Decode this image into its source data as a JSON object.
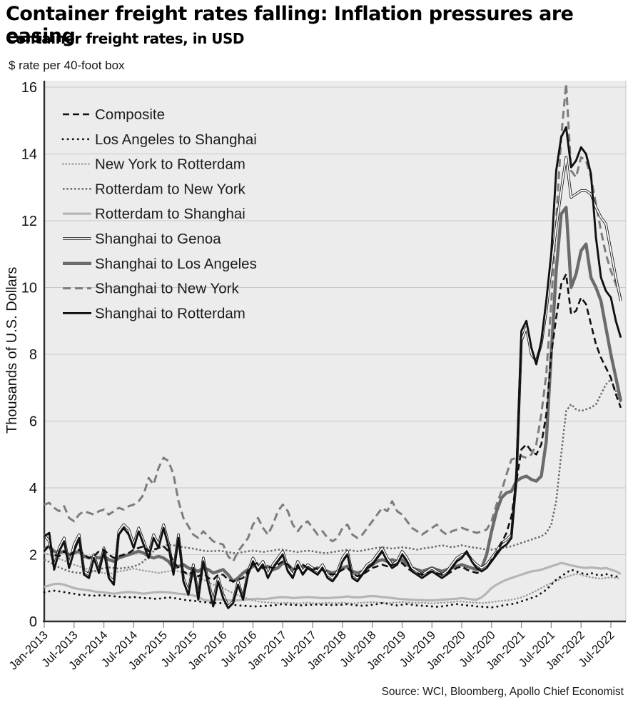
{
  "header": {
    "title": "Container freight rates falling: Inflation pressures are easing",
    "subtitle": "Container freight rates, in USD",
    "unit_note": "$ rate per 40-foot box"
  },
  "source": "Source: WCI, Bloomberg, Apollo Chief Economist",
  "chart_data": {
    "type": "line",
    "title": "Container freight rates falling: Inflation pressures are easing",
    "subtitle": "Container freight rates, in USD",
    "unit_note": "$ rate per 40-foot box",
    "ylabel": "Thousands of U.S. Dollars",
    "ylim": [
      0,
      16
    ],
    "y_ticks": [
      0,
      2,
      4,
      6,
      8,
      10,
      12,
      14,
      16
    ],
    "grid": "horizontal",
    "legend_position": "top-left-inside",
    "plot_bg": "#ececec",
    "grid_color": "#c9c9c9",
    "axis_color": "#2e2e2e",
    "tick_color": "#8f8f8f",
    "x_monthly": {
      "start_label": "Jan-2013",
      "end_label": "Sep-2022",
      "points": 117
    },
    "x_ticks": [
      "Jan-2013",
      "Jul-2013",
      "Jan-2014",
      "Jul-2014",
      "Jan-2015",
      "Jul-2015",
      "Jan-2016",
      "Jul-2016",
      "Jan-2017",
      "Jul-2017",
      "Jan-2018",
      "Jul-2018",
      "Jan-2019",
      "Jul-2019",
      "Jan-2020",
      "Jul-2020",
      "Jan-2021",
      "Jul-2021",
      "Jan-2022",
      "Jul-2022"
    ],
    "z_order": [
      "rotterdam-shanghai",
      "new-york-rotterdam",
      "los-angeles-shanghai",
      "rotterdam-new-york",
      "shanghai-new-york",
      "shanghai-los-angeles",
      "shanghai-genoa",
      "composite",
      "shanghai-rotterdam"
    ],
    "series": [
      {
        "id": "composite",
        "label": "Composite",
        "color": "#111111",
        "width": 2.6,
        "dash": "9 5",
        "cap": "butt",
        "values": [
          2.1,
          2.3,
          2.0,
          1.95,
          2.1,
          1.95,
          2.1,
          2.15,
          2.0,
          1.9,
          1.95,
          2.1,
          2.15,
          2.0,
          1.9,
          1.95,
          2.0,
          2.05,
          2.15,
          2.2,
          2.25,
          2.1,
          2.15,
          2.2,
          2.25,
          2.1,
          1.8,
          1.6,
          1.5,
          1.4,
          1.5,
          1.35,
          1.45,
          1.3,
          1.25,
          1.4,
          1.4,
          1.25,
          1.2,
          1.25,
          1.3,
          1.5,
          1.7,
          1.75,
          1.6,
          1.65,
          1.6,
          1.7,
          1.8,
          1.7,
          1.55,
          1.6,
          1.7,
          1.6,
          1.55,
          1.6,
          1.55,
          1.45,
          1.4,
          1.45,
          1.55,
          1.6,
          1.45,
          1.35,
          1.4,
          1.5,
          1.6,
          1.65,
          1.7,
          1.65,
          1.7,
          1.7,
          1.75,
          1.6,
          1.5,
          1.45,
          1.4,
          1.45,
          1.5,
          1.45,
          1.4,
          1.4,
          1.5,
          1.6,
          1.65,
          1.55,
          1.5,
          1.45,
          1.5,
          1.6,
          1.85,
          2.05,
          2.35,
          2.65,
          3.15,
          4.2,
          5.15,
          5.3,
          5.1,
          5.0,
          5.3,
          6.2,
          8.0,
          9.1,
          10.1,
          10.4,
          9.2,
          9.3,
          9.7,
          9.5,
          8.9,
          8.3,
          7.9,
          7.6,
          7.3,
          6.8,
          6.4
        ]
      },
      {
        "id": "los-angeles-shanghai",
        "label": "Los Angeles to Shanghai",
        "color": "#111111",
        "width": 2.9,
        "dash": "0.1 7",
        "cap": "round",
        "values": [
          0.87,
          0.9,
          0.92,
          0.9,
          0.88,
          0.85,
          0.83,
          0.8,
          0.8,
          0.78,
          0.77,
          0.78,
          0.78,
          0.77,
          0.75,
          0.74,
          0.73,
          0.72,
          0.73,
          0.72,
          0.7,
          0.7,
          0.68,
          0.68,
          0.7,
          0.72,
          0.7,
          0.68,
          0.65,
          0.63,
          0.62,
          0.6,
          0.58,
          0.57,
          0.55,
          0.55,
          0.55,
          0.52,
          0.5,
          0.48,
          0.47,
          0.46,
          0.45,
          0.45,
          0.46,
          0.47,
          0.48,
          0.5,
          0.52,
          0.5,
          0.5,
          0.49,
          0.48,
          0.5,
          0.5,
          0.51,
          0.5,
          0.5,
          0.49,
          0.5,
          0.5,
          0.52,
          0.5,
          0.48,
          0.47,
          0.48,
          0.5,
          0.52,
          0.55,
          0.53,
          0.5,
          0.48,
          0.5,
          0.52,
          0.5,
          0.48,
          0.47,
          0.46,
          0.45,
          0.44,
          0.45,
          0.47,
          0.5,
          0.52,
          0.5,
          0.48,
          0.47,
          0.45,
          0.44,
          0.43,
          0.42,
          0.44,
          0.47,
          0.5,
          0.52,
          0.55,
          0.6,
          0.65,
          0.7,
          0.75,
          0.85,
          0.95,
          1.1,
          1.25,
          1.35,
          1.45,
          1.55,
          1.5,
          1.45,
          1.4,
          1.45,
          1.4,
          1.38,
          1.42,
          1.38,
          1.35,
          1.32
        ]
      },
      {
        "id": "new-york-rotterdam",
        "label": "New York to Rotterdam",
        "color": "#9c9c9c",
        "width": 2.4,
        "dash": "0.5 4",
        "cap": "round",
        "values": [
          2.05,
          2.0,
          1.95,
          1.88,
          1.82,
          1.75,
          1.7,
          1.65,
          1.6,
          1.55,
          1.5,
          1.48,
          1.45,
          1.42,
          1.45,
          1.5,
          1.52,
          1.55,
          1.58,
          1.55,
          1.52,
          1.5,
          1.48,
          1.45,
          1.48,
          1.5,
          1.52,
          1.5,
          1.45,
          1.4,
          1.35,
          1.3,
          1.25,
          1.18,
          1.1,
          1.05,
          1.0,
          0.92,
          0.85,
          0.78,
          0.72,
          0.68,
          0.63,
          0.6,
          0.58,
          0.57,
          0.56,
          0.55,
          0.55,
          0.56,
          0.55,
          0.54,
          0.55,
          0.56,
          0.55,
          0.54,
          0.55,
          0.56,
          0.55,
          0.55,
          0.56,
          0.55,
          0.54,
          0.55,
          0.56,
          0.57,
          0.58,
          0.57,
          0.56,
          0.55,
          0.56,
          0.57,
          0.58,
          0.57,
          0.56,
          0.55,
          0.56,
          0.55,
          0.54,
          0.55,
          0.56,
          0.57,
          0.58,
          0.6,
          0.6,
          0.58,
          0.57,
          0.56,
          0.55,
          0.56,
          0.58,
          0.6,
          0.62,
          0.63,
          0.65,
          0.68,
          0.72,
          0.78,
          0.85,
          0.92,
          1.0,
          1.08,
          1.15,
          1.22,
          1.28,
          1.33,
          1.38,
          1.42,
          1.4,
          1.35,
          1.32,
          1.3,
          1.28,
          1.3,
          1.32,
          1.3,
          1.28
        ]
      },
      {
        "id": "rotterdam-new-york",
        "label": "Rotterdam to New York",
        "color": "#6a6a6a",
        "width": 2.5,
        "dash": "2.5 2.8",
        "cap": "butt",
        "values": [
          1.85,
          1.78,
          1.7,
          1.62,
          1.56,
          1.5,
          1.47,
          1.45,
          1.45,
          1.48,
          1.5,
          1.55,
          1.6,
          1.62,
          1.6,
          1.58,
          1.6,
          1.62,
          1.65,
          1.7,
          1.8,
          1.95,
          2.1,
          2.2,
          2.25,
          2.3,
          2.28,
          2.25,
          2.22,
          2.2,
          2.18,
          2.15,
          2.12,
          2.1,
          2.1,
          2.12,
          2.1,
          2.08,
          2.05,
          2.05,
          2.08,
          2.1,
          2.12,
          2.1,
          2.08,
          2.1,
          2.12,
          2.15,
          2.15,
          2.12,
          2.1,
          2.08,
          2.1,
          2.12,
          2.1,
          2.08,
          2.05,
          2.05,
          2.08,
          2.1,
          2.12,
          2.15,
          2.12,
          2.1,
          2.12,
          2.15,
          2.18,
          2.2,
          2.22,
          2.2,
          2.18,
          2.2,
          2.22,
          2.2,
          2.18,
          2.15,
          2.18,
          2.2,
          2.22,
          2.25,
          2.28,
          2.25,
          2.22,
          2.25,
          2.28,
          2.25,
          2.22,
          2.2,
          2.18,
          2.15,
          2.15,
          2.18,
          2.2,
          2.22,
          2.25,
          2.3,
          2.35,
          2.4,
          2.45,
          2.5,
          2.55,
          2.65,
          2.9,
          3.6,
          5.0,
          6.3,
          6.5,
          6.35,
          6.3,
          6.35,
          6.4,
          6.5,
          6.8,
          7.1,
          7.25,
          6.9,
          6.55
        ]
      },
      {
        "id": "rotterdam-shanghai",
        "label": "Rotterdam to Shanghai",
        "color": "#b5b5b5",
        "width": 3.2,
        "dash": null,
        "cap": "butt",
        "values": [
          1.03,
          1.08,
          1.12,
          1.13,
          1.1,
          1.05,
          1.0,
          0.97,
          0.95,
          0.93,
          0.9,
          0.88,
          0.87,
          0.85,
          0.83,
          0.85,
          0.87,
          0.88,
          0.87,
          0.85,
          0.83,
          0.85,
          0.87,
          0.88,
          0.88,
          0.87,
          0.85,
          0.83,
          0.82,
          0.8,
          0.78,
          0.73,
          0.65,
          0.62,
          0.64,
          0.66,
          0.65,
          0.63,
          0.62,
          0.63,
          0.65,
          0.66,
          0.67,
          0.68,
          0.67,
          0.68,
          0.7,
          0.72,
          0.73,
          0.72,
          0.7,
          0.71,
          0.72,
          0.73,
          0.72,
          0.71,
          0.7,
          0.7,
          0.71,
          0.72,
          0.73,
          0.75,
          0.73,
          0.72,
          0.73,
          0.75,
          0.76,
          0.75,
          0.73,
          0.72,
          0.7,
          0.68,
          0.67,
          0.66,
          0.65,
          0.64,
          0.64,
          0.63,
          0.63,
          0.64,
          0.65,
          0.66,
          0.67,
          0.68,
          0.7,
          0.68,
          0.66,
          0.65,
          0.72,
          0.85,
          1.0,
          1.1,
          1.18,
          1.25,
          1.3,
          1.35,
          1.4,
          1.45,
          1.5,
          1.52,
          1.55,
          1.6,
          1.65,
          1.7,
          1.75,
          1.72,
          1.68,
          1.65,
          1.62,
          1.6,
          1.62,
          1.6,
          1.58,
          1.6,
          1.55,
          1.5,
          1.42
        ]
      },
      {
        "id": "shanghai-genoa",
        "label": "Shanghai to Genoa",
        "color": "#1a1a1a",
        "width": 3.6,
        "dash": null,
        "cap": "butt",
        "overlay_color": "#ffffff",
        "overlay_width": 1.8,
        "values": [
          2.6,
          2.4,
          1.65,
          2.2,
          2.5,
          1.7,
          2.3,
          2.6,
          1.5,
          1.4,
          2.0,
          1.5,
          2.2,
          1.35,
          1.2,
          2.7,
          2.9,
          2.75,
          2.3,
          2.8,
          2.4,
          2.0,
          2.6,
          2.3,
          2.9,
          2.35,
          1.5,
          2.6,
          1.3,
          0.9,
          1.7,
          0.75,
          1.9,
          1.2,
          0.6,
          1.3,
          0.8,
          0.45,
          0.6,
          1.2,
          0.7,
          1.5,
          1.9,
          1.6,
          1.8,
          1.4,
          1.7,
          1.9,
          2.1,
          1.6,
          1.4,
          1.8,
          1.5,
          1.7,
          1.6,
          1.5,
          1.7,
          1.4,
          1.3,
          1.5,
          1.9,
          2.1,
          1.4,
          1.3,
          1.5,
          1.7,
          1.8,
          2.0,
          2.2,
          1.9,
          1.7,
          1.8,
          2.1,
          1.9,
          1.6,
          1.5,
          1.4,
          1.5,
          1.6,
          1.5,
          1.4,
          1.5,
          1.7,
          1.9,
          2.0,
          2.05,
          1.85,
          1.7,
          1.6,
          1.7,
          1.9,
          2.1,
          2.35,
          2.45,
          2.6,
          4.3,
          8.4,
          8.8,
          8.0,
          7.8,
          8.3,
          9.3,
          10.6,
          11.8,
          12.9,
          13.9,
          12.7,
          12.8,
          12.9,
          12.9,
          12.8,
          12.4,
          12.1,
          11.9,
          11.1,
          10.3,
          9.6
        ]
      },
      {
        "id": "shanghai-los-angeles",
        "label": "Shanghai to Los Angeles",
        "color": "#6b6b6b",
        "width": 4.4,
        "dash": null,
        "cap": "butt",
        "values": [
          2.15,
          2.25,
          2.1,
          2.05,
          2.1,
          2.0,
          2.05,
          2.1,
          1.95,
          1.9,
          1.95,
          1.9,
          1.95,
          1.85,
          1.8,
          1.9,
          1.95,
          2.0,
          2.05,
          2.1,
          2.05,
          1.95,
          1.9,
          1.95,
          1.9,
          1.8,
          1.6,
          1.65,
          1.7,
          1.6,
          1.55,
          1.5,
          1.6,
          1.55,
          1.45,
          1.5,
          1.55,
          1.4,
          1.2,
          1.3,
          1.45,
          1.55,
          1.65,
          1.7,
          1.6,
          1.65,
          1.55,
          1.6,
          1.75,
          1.7,
          1.55,
          1.6,
          1.65,
          1.6,
          1.55,
          1.6,
          1.55,
          1.5,
          1.45,
          1.5,
          1.6,
          1.65,
          1.5,
          1.45,
          1.5,
          1.6,
          1.7,
          1.8,
          1.85,
          1.8,
          1.85,
          1.8,
          1.85,
          1.7,
          1.6,
          1.55,
          1.5,
          1.55,
          1.6,
          1.55,
          1.5,
          1.55,
          1.6,
          1.65,
          1.7,
          1.65,
          1.6,
          1.55,
          1.6,
          2.0,
          2.7,
          3.3,
          3.7,
          3.85,
          3.9,
          4.2,
          4.3,
          4.35,
          4.25,
          4.2,
          4.35,
          5.4,
          8.0,
          10.5,
          12.2,
          12.4,
          10.0,
          10.4,
          11.1,
          11.3,
          10.3,
          10.0,
          9.6,
          8.8,
          8.0,
          7.3,
          6.6
        ]
      },
      {
        "id": "shanghai-new-york",
        "label": "Shanghai to New  York",
        "color": "#7d7d7d",
        "width": 3.0,
        "dash": "11 6",
        "cap": "butt",
        "values": [
          3.5,
          3.55,
          3.4,
          3.3,
          3.45,
          3.1,
          3.0,
          3.2,
          3.3,
          3.25,
          3.2,
          3.3,
          3.35,
          3.2,
          3.3,
          3.4,
          3.35,
          3.45,
          3.5,
          3.6,
          3.8,
          4.3,
          4.1,
          4.6,
          4.9,
          4.8,
          4.4,
          3.6,
          3.1,
          2.85,
          2.6,
          2.5,
          2.7,
          2.55,
          2.4,
          2.35,
          2.3,
          1.95,
          1.8,
          2.1,
          2.3,
          2.5,
          2.9,
          3.1,
          2.8,
          2.6,
          2.9,
          3.3,
          3.5,
          3.3,
          2.9,
          2.7,
          2.9,
          3.0,
          2.8,
          2.6,
          2.7,
          2.5,
          2.4,
          2.5,
          2.8,
          2.9,
          2.6,
          2.5,
          2.6,
          2.8,
          3.0,
          3.2,
          3.4,
          3.3,
          3.6,
          3.3,
          3.2,
          3.0,
          2.8,
          2.7,
          2.6,
          2.7,
          2.8,
          2.9,
          2.7,
          2.6,
          2.7,
          2.75,
          2.8,
          2.75,
          2.7,
          2.65,
          2.7,
          2.75,
          3.0,
          3.5,
          3.9,
          4.4,
          4.85,
          4.9,
          4.95,
          4.9,
          5.0,
          5.3,
          6.2,
          7.4,
          9.5,
          12.0,
          14.5,
          16.1,
          13.5,
          13.3,
          13.9,
          13.8,
          13.3,
          12.5,
          11.7,
          11.0,
          10.5,
          10.1,
          9.7
        ]
      },
      {
        "id": "shanghai-rotterdam",
        "label": "Shanghai to  Rotterdam",
        "color": "#111111",
        "width": 2.9,
        "dash": null,
        "cap": "butt",
        "values": [
          2.55,
          2.65,
          1.55,
          2.1,
          2.4,
          1.6,
          2.1,
          2.5,
          1.4,
          1.3,
          1.9,
          1.45,
          2.1,
          1.3,
          1.1,
          2.6,
          2.8,
          2.6,
          2.2,
          2.7,
          2.3,
          1.9,
          2.5,
          2.2,
          2.8,
          2.25,
          1.4,
          2.5,
          1.2,
          0.8,
          1.6,
          0.65,
          1.8,
          1.1,
          0.45,
          1.2,
          0.7,
          0.4,
          0.55,
          1.1,
          0.65,
          1.4,
          1.8,
          1.5,
          1.7,
          1.3,
          1.6,
          1.8,
          2.0,
          1.5,
          1.3,
          1.7,
          1.4,
          1.6,
          1.5,
          1.4,
          1.6,
          1.3,
          1.2,
          1.4,
          1.8,
          2.0,
          1.3,
          1.2,
          1.4,
          1.6,
          1.7,
          1.9,
          2.1,
          1.8,
          1.6,
          1.7,
          2.0,
          1.8,
          1.5,
          1.4,
          1.3,
          1.4,
          1.5,
          1.4,
          1.3,
          1.4,
          1.6,
          1.8,
          1.9,
          2.1,
          1.8,
          1.6,
          1.5,
          1.6,
          1.8,
          2.0,
          2.2,
          2.3,
          2.5,
          4.5,
          8.7,
          9.0,
          8.2,
          7.7,
          8.4,
          9.6,
          11.0,
          13.5,
          14.5,
          14.8,
          13.6,
          13.8,
          14.2,
          14.0,
          13.4,
          11.5,
          10.3,
          9.9,
          9.7,
          9.0,
          8.5
        ]
      }
    ]
  }
}
